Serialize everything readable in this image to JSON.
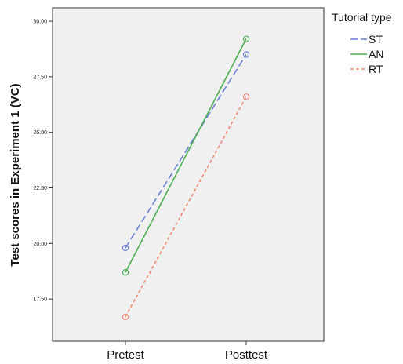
{
  "chart_data": {
    "type": "line",
    "title": "",
    "xlabel": "",
    "ylabel": "Test scores in Experiment 1 (VC)",
    "categories": [
      "Pretest",
      "Posttest"
    ],
    "ylim": [
      15.6,
      30.6
    ],
    "yticks": [
      17.5,
      20.0,
      22.5,
      25.0,
      27.5,
      30.0
    ],
    "ytick_labels": [
      "17.50",
      "20.00",
      "22.50",
      "25.00",
      "27.50",
      "30.00"
    ],
    "grid": false,
    "legend": {
      "title": "Tutorial type",
      "placement": "right-top"
    },
    "series": [
      {
        "name": "ST",
        "values": [
          19.8,
          28.5
        ],
        "color": "#6a7fd6",
        "dash": "long-dash"
      },
      {
        "name": "AN",
        "values": [
          18.7,
          29.2
        ],
        "color": "#4caf50",
        "dash": "solid"
      },
      {
        "name": "RT",
        "values": [
          16.7,
          26.6
        ],
        "color": "#f08a72",
        "dash": "short-dash"
      }
    ]
  }
}
